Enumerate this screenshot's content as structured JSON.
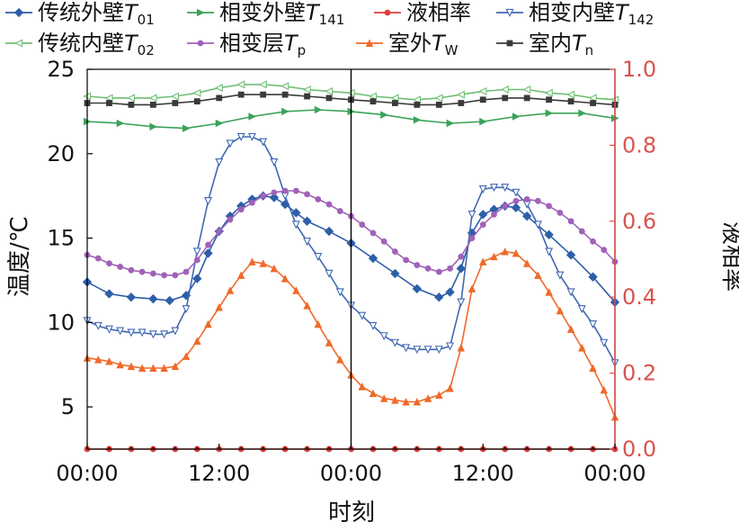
{
  "chart_data": {
    "type": "line",
    "xlabel": "时刻",
    "ylabel": "温度/℃",
    "y2label": "液相率",
    "xlim": [
      0,
      48
    ],
    "ylim": [
      2.5,
      25
    ],
    "y2lim": [
      0,
      1.0
    ],
    "x_ticks": [
      {
        "value": 0,
        "label": "00:00"
      },
      {
        "value": 12,
        "label": "12:00"
      },
      {
        "value": 24,
        "label": "00:00"
      },
      {
        "value": 36,
        "label": "12:00"
      },
      {
        "value": 48,
        "label": "00:00"
      }
    ],
    "y_ticks": [
      5,
      10,
      15,
      20,
      25
    ],
    "y2_ticks": [
      "0.0",
      "0.2",
      "0.4",
      "0.6",
      "0.8",
      "1.0"
    ],
    "vertical_line_x": 24,
    "grid": false,
    "legend_position": "top",
    "series": [
      {
        "name": "传统外壁",
        "sub": "01",
        "axis": "left",
        "color": "#2d5ea8",
        "marker": "diamond",
        "points": [
          [
            0,
            12.4
          ],
          [
            2,
            11.7
          ],
          [
            4,
            11.5
          ],
          [
            6,
            11.4
          ],
          [
            7.5,
            11.3
          ],
          [
            9,
            11.6
          ],
          [
            10,
            12.6
          ],
          [
            11,
            14.1
          ],
          [
            12,
            15.4
          ],
          [
            13,
            16.3
          ],
          [
            14,
            16.9
          ],
          [
            15,
            17.3
          ],
          [
            16,
            17.5
          ],
          [
            17,
            17.4
          ],
          [
            18,
            17.0
          ],
          [
            19,
            16.5
          ],
          [
            20,
            16.0
          ],
          [
            22,
            15.4
          ],
          [
            24,
            14.7
          ],
          [
            26,
            13.8
          ],
          [
            28,
            12.9
          ],
          [
            30,
            12.0
          ],
          [
            32,
            11.5
          ],
          [
            33,
            11.8
          ],
          [
            34,
            13.2
          ],
          [
            35,
            15.3
          ],
          [
            36,
            16.4
          ],
          [
            37,
            16.7
          ],
          [
            38,
            16.9
          ],
          [
            39,
            16.8
          ],
          [
            40,
            16.3
          ],
          [
            42,
            15.2
          ],
          [
            44,
            14.0
          ],
          [
            46,
            12.7
          ],
          [
            48,
            11.2
          ]
        ]
      },
      {
        "name": "相变外壁",
        "sub": "141",
        "axis": "left",
        "color": "#3aa35a",
        "marker": "triangle-right",
        "points": [
          [
            0,
            21.9
          ],
          [
            3,
            21.8
          ],
          [
            6,
            21.6
          ],
          [
            9,
            21.5
          ],
          [
            12,
            21.8
          ],
          [
            15,
            22.2
          ],
          [
            18,
            22.5
          ],
          [
            21,
            22.6
          ],
          [
            24,
            22.5
          ],
          [
            27,
            22.3
          ],
          [
            30,
            22.0
          ],
          [
            33,
            21.8
          ],
          [
            36,
            21.9
          ],
          [
            39,
            22.2
          ],
          [
            42,
            22.4
          ],
          [
            45,
            22.4
          ],
          [
            48,
            22.1
          ]
        ]
      },
      {
        "name": "液相率",
        "axis": "right",
        "color": "#e03c3c",
        "marker": "circle",
        "points": [
          [
            0,
            0
          ],
          [
            2,
            0
          ],
          [
            4,
            0
          ],
          [
            6,
            0
          ],
          [
            8,
            0
          ],
          [
            10,
            0
          ],
          [
            12,
            0
          ],
          [
            14,
            0
          ],
          [
            16,
            0
          ],
          [
            18,
            0
          ],
          [
            20,
            0
          ],
          [
            22,
            0
          ],
          [
            24,
            0
          ],
          [
            26,
            0
          ],
          [
            28,
            0
          ],
          [
            30,
            0
          ],
          [
            32,
            0
          ],
          [
            34,
            0
          ],
          [
            36,
            0
          ],
          [
            38,
            0
          ],
          [
            40,
            0
          ],
          [
            42,
            0
          ],
          [
            44,
            0
          ],
          [
            46,
            0
          ],
          [
            48,
            0
          ]
        ]
      },
      {
        "name": "相变内壁",
        "sub": "142",
        "axis": "left",
        "color": "#3f67b1",
        "marker": "triangle-down-open",
        "points": [
          [
            0,
            10.1
          ],
          [
            1,
            9.8
          ],
          [
            2,
            9.6
          ],
          [
            3,
            9.5
          ],
          [
            4,
            9.4
          ],
          [
            5,
            9.4
          ],
          [
            6,
            9.3
          ],
          [
            7,
            9.3
          ],
          [
            8,
            9.5
          ],
          [
            9,
            10.8
          ],
          [
            10,
            14.2
          ],
          [
            11,
            17.2
          ],
          [
            12,
            19.5
          ],
          [
            13,
            20.6
          ],
          [
            14,
            21.0
          ],
          [
            15,
            21.0
          ],
          [
            16,
            20.7
          ],
          [
            17,
            19.5
          ],
          [
            18,
            17.5
          ],
          [
            19,
            15.8
          ],
          [
            20,
            14.8
          ],
          [
            21,
            13.9
          ],
          [
            22,
            12.9
          ],
          [
            23,
            11.8
          ],
          [
            24,
            11.0
          ],
          [
            25,
            10.4
          ],
          [
            26,
            9.8
          ],
          [
            27,
            9.2
          ],
          [
            28,
            8.8
          ],
          [
            29,
            8.5
          ],
          [
            30,
            8.4
          ],
          [
            31,
            8.4
          ],
          [
            32,
            8.4
          ],
          [
            33,
            8.6
          ],
          [
            34,
            11.2
          ],
          [
            35,
            16.4
          ],
          [
            36,
            17.9
          ],
          [
            37,
            18.0
          ],
          [
            38,
            18.0
          ],
          [
            39,
            17.7
          ],
          [
            40,
            17.0
          ],
          [
            41,
            15.8
          ],
          [
            42,
            14.2
          ],
          [
            43,
            12.8
          ],
          [
            44,
            11.8
          ],
          [
            45,
            10.8
          ],
          [
            46,
            9.9
          ],
          [
            47,
            8.8
          ],
          [
            48,
            7.6
          ]
        ]
      },
      {
        "name": "传统内壁",
        "sub": "02",
        "axis": "left",
        "color": "#6fbf73",
        "marker": "triangle-left-open",
        "points": [
          [
            0,
            23.4
          ],
          [
            2,
            23.3
          ],
          [
            4,
            23.3
          ],
          [
            6,
            23.3
          ],
          [
            8,
            23.4
          ],
          [
            10,
            23.6
          ],
          [
            12,
            23.9
          ],
          [
            14,
            24.1
          ],
          [
            16,
            24.1
          ],
          [
            18,
            24.0
          ],
          [
            20,
            23.8
          ],
          [
            22,
            23.7
          ],
          [
            24,
            23.6
          ],
          [
            26,
            23.4
          ],
          [
            28,
            23.3
          ],
          [
            30,
            23.2
          ],
          [
            32,
            23.3
          ],
          [
            34,
            23.5
          ],
          [
            36,
            23.7
          ],
          [
            38,
            23.8
          ],
          [
            40,
            23.8
          ],
          [
            42,
            23.6
          ],
          [
            44,
            23.5
          ],
          [
            46,
            23.3
          ],
          [
            48,
            23.2
          ]
        ]
      },
      {
        "name": "相变层",
        "sub": "p",
        "axis": "left",
        "color": "#a062b8",
        "marker": "circle",
        "points": [
          [
            0,
            14.0
          ],
          [
            1,
            13.8
          ],
          [
            2,
            13.5
          ],
          [
            3,
            13.3
          ],
          [
            4,
            13.1
          ],
          [
            5,
            13.0
          ],
          [
            6,
            12.9
          ],
          [
            7,
            12.8
          ],
          [
            8,
            12.8
          ],
          [
            9,
            13.0
          ],
          [
            10,
            13.7
          ],
          [
            11,
            14.6
          ],
          [
            12,
            15.4
          ],
          [
            13,
            16.1
          ],
          [
            14,
            16.7
          ],
          [
            15,
            17.1
          ],
          [
            16,
            17.5
          ],
          [
            17,
            17.7
          ],
          [
            18,
            17.8
          ],
          [
            19,
            17.8
          ],
          [
            20,
            17.6
          ],
          [
            21,
            17.3
          ],
          [
            22,
            17.0
          ],
          [
            23,
            16.6
          ],
          [
            24,
            16.3
          ],
          [
            25,
            15.8
          ],
          [
            26,
            15.3
          ],
          [
            27,
            14.8
          ],
          [
            28,
            14.2
          ],
          [
            29,
            13.7
          ],
          [
            30,
            13.4
          ],
          [
            31,
            13.2
          ],
          [
            32,
            13.0
          ],
          [
            33,
            13.2
          ],
          [
            34,
            13.9
          ],
          [
            35,
            15.0
          ],
          [
            36,
            15.8
          ],
          [
            37,
            16.4
          ],
          [
            38,
            16.9
          ],
          [
            39,
            17.2
          ],
          [
            40,
            17.3
          ],
          [
            41,
            17.2
          ],
          [
            42,
            16.9
          ],
          [
            43,
            16.5
          ],
          [
            44,
            16.0
          ],
          [
            45,
            15.4
          ],
          [
            46,
            14.8
          ],
          [
            47,
            14.3
          ],
          [
            48,
            13.6
          ]
        ]
      },
      {
        "name": "室外",
        "sub": "W",
        "axis": "left",
        "color": "#ef6a2a",
        "marker": "triangle-up",
        "points": [
          [
            0,
            7.9
          ],
          [
            1,
            7.8
          ],
          [
            2,
            7.7
          ],
          [
            3,
            7.5
          ],
          [
            4,
            7.4
          ],
          [
            5,
            7.3
          ],
          [
            6,
            7.3
          ],
          [
            7,
            7.3
          ],
          [
            8,
            7.4
          ],
          [
            9,
            8.0
          ],
          [
            10,
            8.9
          ],
          [
            11,
            9.9
          ],
          [
            12,
            10.9
          ],
          [
            13,
            11.9
          ],
          [
            14,
            12.8
          ],
          [
            15,
            13.6
          ],
          [
            16,
            13.5
          ],
          [
            17,
            13.2
          ],
          [
            18,
            12.6
          ],
          [
            19,
            11.9
          ],
          [
            20,
            11.0
          ],
          [
            21,
            9.9
          ],
          [
            22,
            8.8
          ],
          [
            23,
            7.8
          ],
          [
            24,
            6.9
          ],
          [
            25,
            6.2
          ],
          [
            26,
            5.8
          ],
          [
            27,
            5.5
          ],
          [
            28,
            5.4
          ],
          [
            29,
            5.3
          ],
          [
            30,
            5.3
          ],
          [
            31,
            5.5
          ],
          [
            32,
            5.7
          ],
          [
            33,
            6.1
          ],
          [
            34,
            8.5
          ],
          [
            35,
            12.0
          ],
          [
            36,
            13.6
          ],
          [
            37,
            13.9
          ],
          [
            38,
            14.2
          ],
          [
            39,
            14.1
          ],
          [
            40,
            13.5
          ],
          [
            41,
            12.8
          ],
          [
            42,
            11.8
          ],
          [
            43,
            10.7
          ],
          [
            44,
            9.6
          ],
          [
            45,
            8.5
          ],
          [
            46,
            7.3
          ],
          [
            47,
            6.0
          ],
          [
            48,
            4.4
          ]
        ]
      },
      {
        "name": "室内",
        "sub": "n",
        "axis": "left",
        "color": "#3a3a3a",
        "marker": "square",
        "points": [
          [
            0,
            23.0
          ],
          [
            2,
            23.0
          ],
          [
            4,
            22.9
          ],
          [
            6,
            22.9
          ],
          [
            8,
            23.0
          ],
          [
            10,
            23.1
          ],
          [
            12,
            23.3
          ],
          [
            14,
            23.5
          ],
          [
            16,
            23.5
          ],
          [
            18,
            23.5
          ],
          [
            20,
            23.4
          ],
          [
            22,
            23.3
          ],
          [
            24,
            23.2
          ],
          [
            26,
            23.1
          ],
          [
            28,
            23.0
          ],
          [
            30,
            22.9
          ],
          [
            32,
            22.9
          ],
          [
            34,
            23.0
          ],
          [
            36,
            23.2
          ],
          [
            38,
            23.3
          ],
          [
            40,
            23.3
          ],
          [
            42,
            23.2
          ],
          [
            44,
            23.1
          ],
          [
            46,
            23.0
          ],
          [
            48,
            22.9
          ]
        ]
      }
    ]
  }
}
